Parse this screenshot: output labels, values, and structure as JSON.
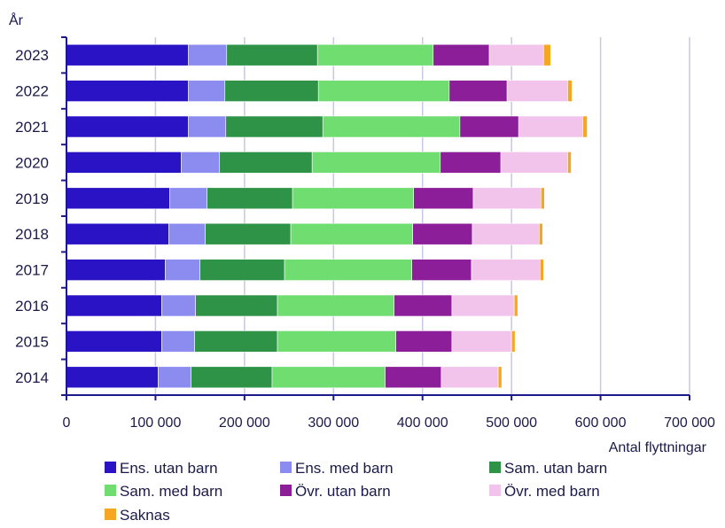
{
  "chart_data": {
    "type": "bar",
    "orientation": "horizontal",
    "stacked": true,
    "title": "",
    "ylabel": "År",
    "xlabel": "Antal flyttningar",
    "xlim": [
      0,
      700000
    ],
    "xticks": [
      0,
      100000,
      200000,
      300000,
      400000,
      500000,
      600000,
      700000
    ],
    "xtick_labels": [
      "0",
      "100 000",
      "200 000",
      "300 000",
      "400 000",
      "500 000",
      "600 000",
      "700 000"
    ],
    "grid": "vertical",
    "legend_position": "bottom",
    "categories": [
      "2023",
      "2022",
      "2021",
      "2020",
      "2019",
      "2018",
      "2017",
      "2016",
      "2015",
      "2014"
    ],
    "series": [
      {
        "name": "Ens. utan barn",
        "color": "#2a13c4",
        "values": [
          137000,
          137000,
          137000,
          129000,
          116000,
          115000,
          111000,
          107000,
          107000,
          103000
        ]
      },
      {
        "name": "Ens. med barn",
        "color": "#8c8cf0",
        "values": [
          43000,
          41000,
          42000,
          43000,
          42000,
          41000,
          39000,
          38000,
          37000,
          37000
        ]
      },
      {
        "name": "Sam. utan barn",
        "color": "#2e9346",
        "values": [
          102000,
          105000,
          109000,
          104000,
          96000,
          96000,
          95000,
          92000,
          93000,
          91000
        ]
      },
      {
        "name": "Sam. med barn",
        "color": "#6fdd70",
        "values": [
          130000,
          147000,
          154000,
          144000,
          136000,
          137000,
          143000,
          131000,
          133000,
          127000
        ]
      },
      {
        "name": "Övr. utan barn",
        "color": "#8c1f99",
        "values": [
          63000,
          65000,
          66000,
          68000,
          67000,
          67000,
          67000,
          65000,
          63000,
          63000
        ]
      },
      {
        "name": "Övr. med barn",
        "color": "#f2c4ec",
        "values": [
          61000,
          68000,
          72000,
          75000,
          76000,
          75000,
          77000,
          70000,
          67000,
          64000
        ]
      },
      {
        "name": "Saknas",
        "color": "#f5a623",
        "values": [
          8000,
          5000,
          5000,
          4000,
          4000,
          4000,
          4000,
          4000,
          4000,
          4000
        ]
      }
    ]
  },
  "colors": {
    "axis": "#1a1a8c",
    "grid": "#c7c7e6",
    "text": "#1a1a4a"
  }
}
